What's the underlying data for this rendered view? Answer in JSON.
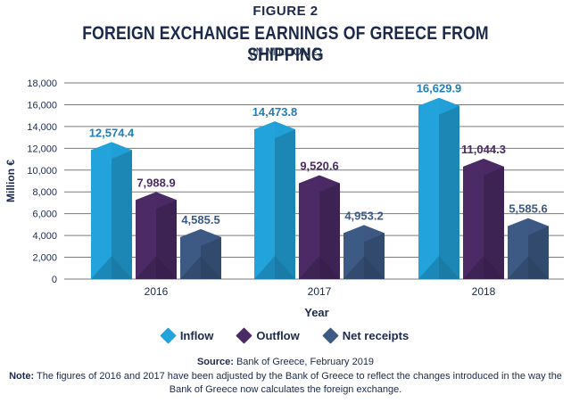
{
  "figure_label": "FIGURE 2",
  "colors": {
    "inflow": "#22a3dc",
    "outflow": "#4b2a66",
    "net_receipts": "#3d5a85",
    "text": "#1b2a4a",
    "axis": "#555555"
  },
  "chart_data": {
    "type": "bar",
    "title": "FOREIGN EXCHANGE EARNINGS OF GREECE FROM SHIPPING",
    "subtitle": "(IN MILLION €)",
    "xlabel": "Year",
    "ylabel": "Million €",
    "ylim": [
      0,
      18000
    ],
    "yticks": [
      "0",
      "2,000",
      "4,000",
      "6,000",
      "8,000",
      "10,000",
      "12,000",
      "14,000",
      "16,000",
      "18,000"
    ],
    "categories": [
      "2016",
      "2017",
      "2018"
    ],
    "grid": true,
    "legend_position": "bottom",
    "series": [
      {
        "name": "Inflow",
        "values": [
          12574.4,
          14473.8,
          16629.9
        ],
        "labels": [
          "12,574.4",
          "14,473.8",
          "16,629.9"
        ]
      },
      {
        "name": "Outflow",
        "values": [
          7988.9,
          9520.6,
          11044.3
        ],
        "labels": [
          "7,988.9",
          "9,520.6",
          "11,044.3"
        ]
      },
      {
        "name": "Net receipts",
        "values": [
          4585.5,
          4953.2,
          5585.6
        ],
        "labels": [
          "4,585.5",
          "4,953.2",
          "5,585.6"
        ]
      }
    ]
  },
  "source": {
    "label": "Source:",
    "text": "Bank of Greece, February 2019"
  },
  "note": {
    "label": "Note:",
    "text": "The figures of 2016 and 2017 have been adjusted by the Bank of Greece to reflect the changes introduced in the way the Bank of Greece now calculates the foreign exchange."
  }
}
